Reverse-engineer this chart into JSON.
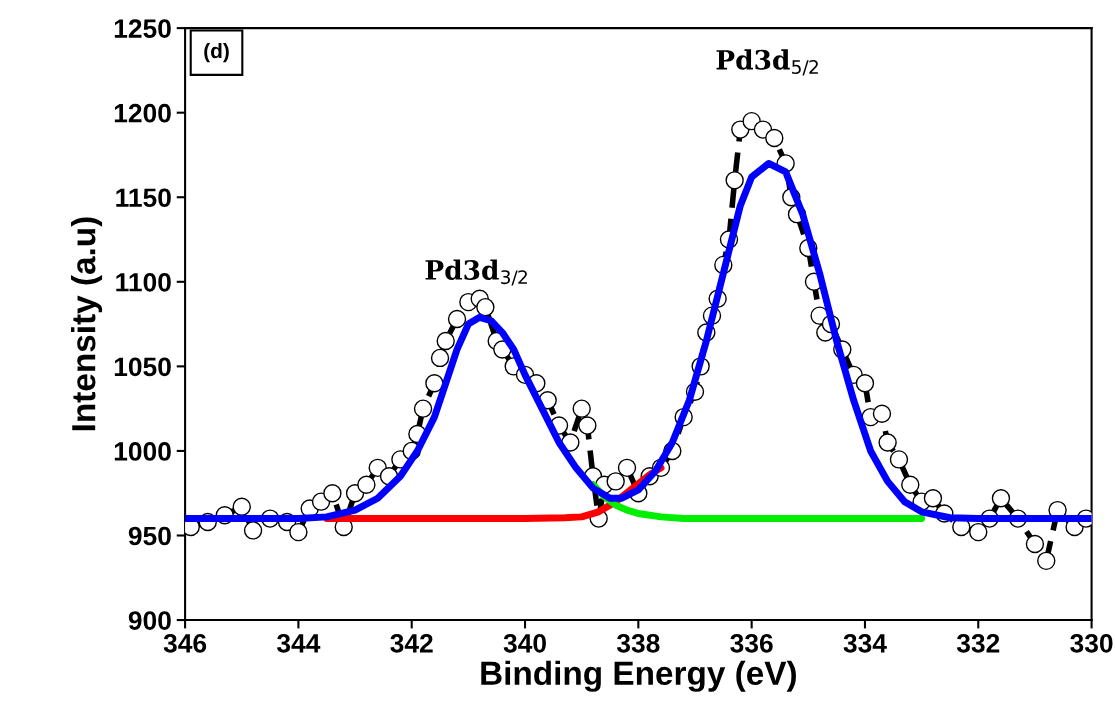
{
  "chart_data": {
    "type": "line",
    "xlabel": "Binding Energy (eV)",
    "ylabel": "Intensity (a.u)",
    "xlim": [
      346,
      330
    ],
    "xticks": [
      346,
      344,
      342,
      340,
      338,
      336,
      334,
      332,
      330
    ],
    "ylim": [
      900,
      1250
    ],
    "yticks": [
      900,
      950,
      1000,
      1050,
      1100,
      1150,
      1200,
      1250
    ],
    "grid": false,
    "legend": false,
    "annotations": [
      "(d)",
      "Pd3d$_{3/2}$",
      "Pd3d$_{5/2}$"
    ],
    "series": [
      {
        "color": "#000000",
        "marker": "circle",
        "line_style": "dashed",
        "x": [
          345.9,
          345.6,
          345.3,
          345.0,
          344.8,
          344.5,
          344.2,
          344.0,
          343.8,
          343.6,
          343.4,
          343.2,
          343.0,
          342.8,
          342.6,
          342.4,
          342.2,
          342.0,
          341.9,
          341.8,
          341.6,
          341.5,
          341.4,
          341.2,
          341.0,
          340.8,
          340.7,
          340.5,
          340.4,
          340.2,
          340.0,
          339.8,
          339.6,
          339.4,
          339.2,
          339.0,
          338.9,
          338.8,
          338.7,
          338.6,
          338.4,
          338.2,
          338.0,
          337.8,
          337.6,
          337.4,
          337.2,
          337.0,
          336.9,
          336.8,
          336.7,
          336.6,
          336.5,
          336.4,
          336.3,
          336.2,
          336.0,
          335.8,
          335.6,
          335.4,
          335.3,
          335.2,
          335.0,
          334.9,
          334.8,
          334.7,
          334.6,
          334.4,
          334.2,
          334.0,
          333.9,
          333.7,
          333.6,
          333.4,
          333.2,
          333.0,
          332.8,
          332.6,
          332.3,
          332.0,
          331.8,
          331.6,
          331.3,
          331.0,
          330.8,
          330.6,
          330.3,
          330.1
        ],
        "values": [
          955,
          958,
          962,
          967,
          953,
          960,
          958,
          952,
          966,
          970,
          975,
          955,
          975,
          980,
          990,
          985,
          995,
          1000,
          1010,
          1025,
          1040,
          1055,
          1065,
          1078,
          1088,
          1090,
          1085,
          1065,
          1060,
          1050,
          1045,
          1040,
          1030,
          1015,
          1005,
          1025,
          1015,
          985,
          960,
          980,
          982,
          990,
          975,
          985,
          990,
          1000,
          1020,
          1035,
          1050,
          1070,
          1080,
          1090,
          1110,
          1125,
          1160,
          1190,
          1195,
          1190,
          1185,
          1170,
          1150,
          1140,
          1120,
          1100,
          1080,
          1070,
          1075,
          1060,
          1045,
          1040,
          1020,
          1022,
          1005,
          995,
          980,
          970,
          972,
          963,
          955,
          952,
          960,
          972,
          960,
          945,
          935,
          965,
          955,
          960
        ]
      },
      {
        "color": "#ff0000",
        "x": [
          343.5,
          342,
          340,
          339.3,
          339,
          338.7,
          338.4,
          338.1,
          337.8,
          337.6
        ],
        "values": [
          960,
          960,
          960,
          960.5,
          961,
          964,
          970,
          978,
          986,
          990
        ]
      },
      {
        "color": "#00ee00",
        "x": [
          338.8,
          338.6,
          338.4,
          338.2,
          338,
          337.6,
          337.2,
          336,
          334,
          333
        ],
        "values": [
          980,
          973,
          968,
          965,
          963,
          961,
          960,
          960,
          960,
          960
        ]
      },
      {
        "color": "#0000ff",
        "x": [
          346,
          344,
          343.5,
          343,
          342.6,
          342.2,
          341.9,
          341.6,
          341.4,
          341.2,
          341,
          340.8,
          340.6,
          340.4,
          340.2,
          340,
          339.7,
          339.4,
          339.1,
          338.8,
          338.5,
          338.3,
          338,
          337.7,
          337.4,
          337.1,
          336.8,
          336.5,
          336.2,
          336,
          335.7,
          335.4,
          335.1,
          334.8,
          334.5,
          334.2,
          333.9,
          333.6,
          333.3,
          333,
          332.5,
          332,
          330
        ],
        "values": [
          960,
          960,
          961,
          965,
          972,
          985,
          1000,
          1020,
          1040,
          1060,
          1075,
          1079,
          1077,
          1070,
          1060,
          1045,
          1025,
          1005,
          990,
          978,
          972,
          972,
          977,
          988,
          1005,
          1030,
          1065,
          1105,
          1145,
          1162,
          1170,
          1165,
          1140,
          1105,
          1065,
          1030,
          1000,
          982,
          970,
          964,
          960.5,
          960,
          960
        ]
      }
    ]
  }
}
